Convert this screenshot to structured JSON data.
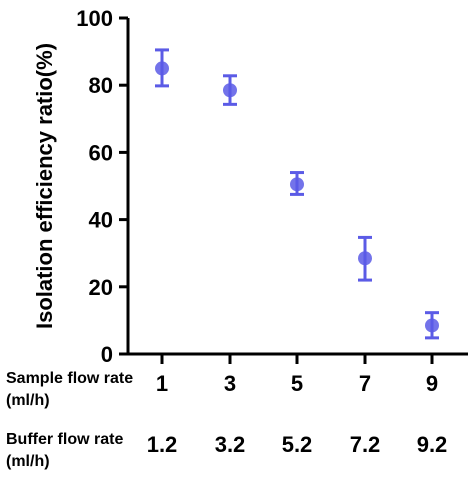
{
  "chart_data": {
    "type": "scatter",
    "ylabel": "Isolation efficiency ratio(%)",
    "ylim": [
      0,
      100
    ],
    "yticks": [
      "0",
      "20",
      "40",
      "60",
      "80",
      "100"
    ],
    "x_rows": [
      {
        "label_line1": "Sample flow rate",
        "label_line2": "(ml/h)",
        "values": [
          "1",
          "3",
          "5",
          "7",
          "9"
        ]
      },
      {
        "label_line1": "Buffer flow rate",
        "label_line2": "(ml/h)",
        "values": [
          "1.2",
          "3.2",
          "5.2",
          "7.2",
          "9.2"
        ]
      }
    ],
    "series": [
      {
        "color": "#5b5be6",
        "points": [
          {
            "x": "1",
            "y": 85.0,
            "err_low": 79.8,
            "err_high": 90.5
          },
          {
            "x": "3",
            "y": 78.5,
            "err_low": 74.3,
            "err_high": 82.8
          },
          {
            "x": "5",
            "y": 50.5,
            "err_low": 47.5,
            "err_high": 54.0
          },
          {
            "x": "7",
            "y": 28.5,
            "err_low": 22.0,
            "err_high": 34.7
          },
          {
            "x": "9",
            "y": 8.5,
            "err_low": 4.8,
            "err_high": 12.3
          }
        ]
      }
    ]
  }
}
